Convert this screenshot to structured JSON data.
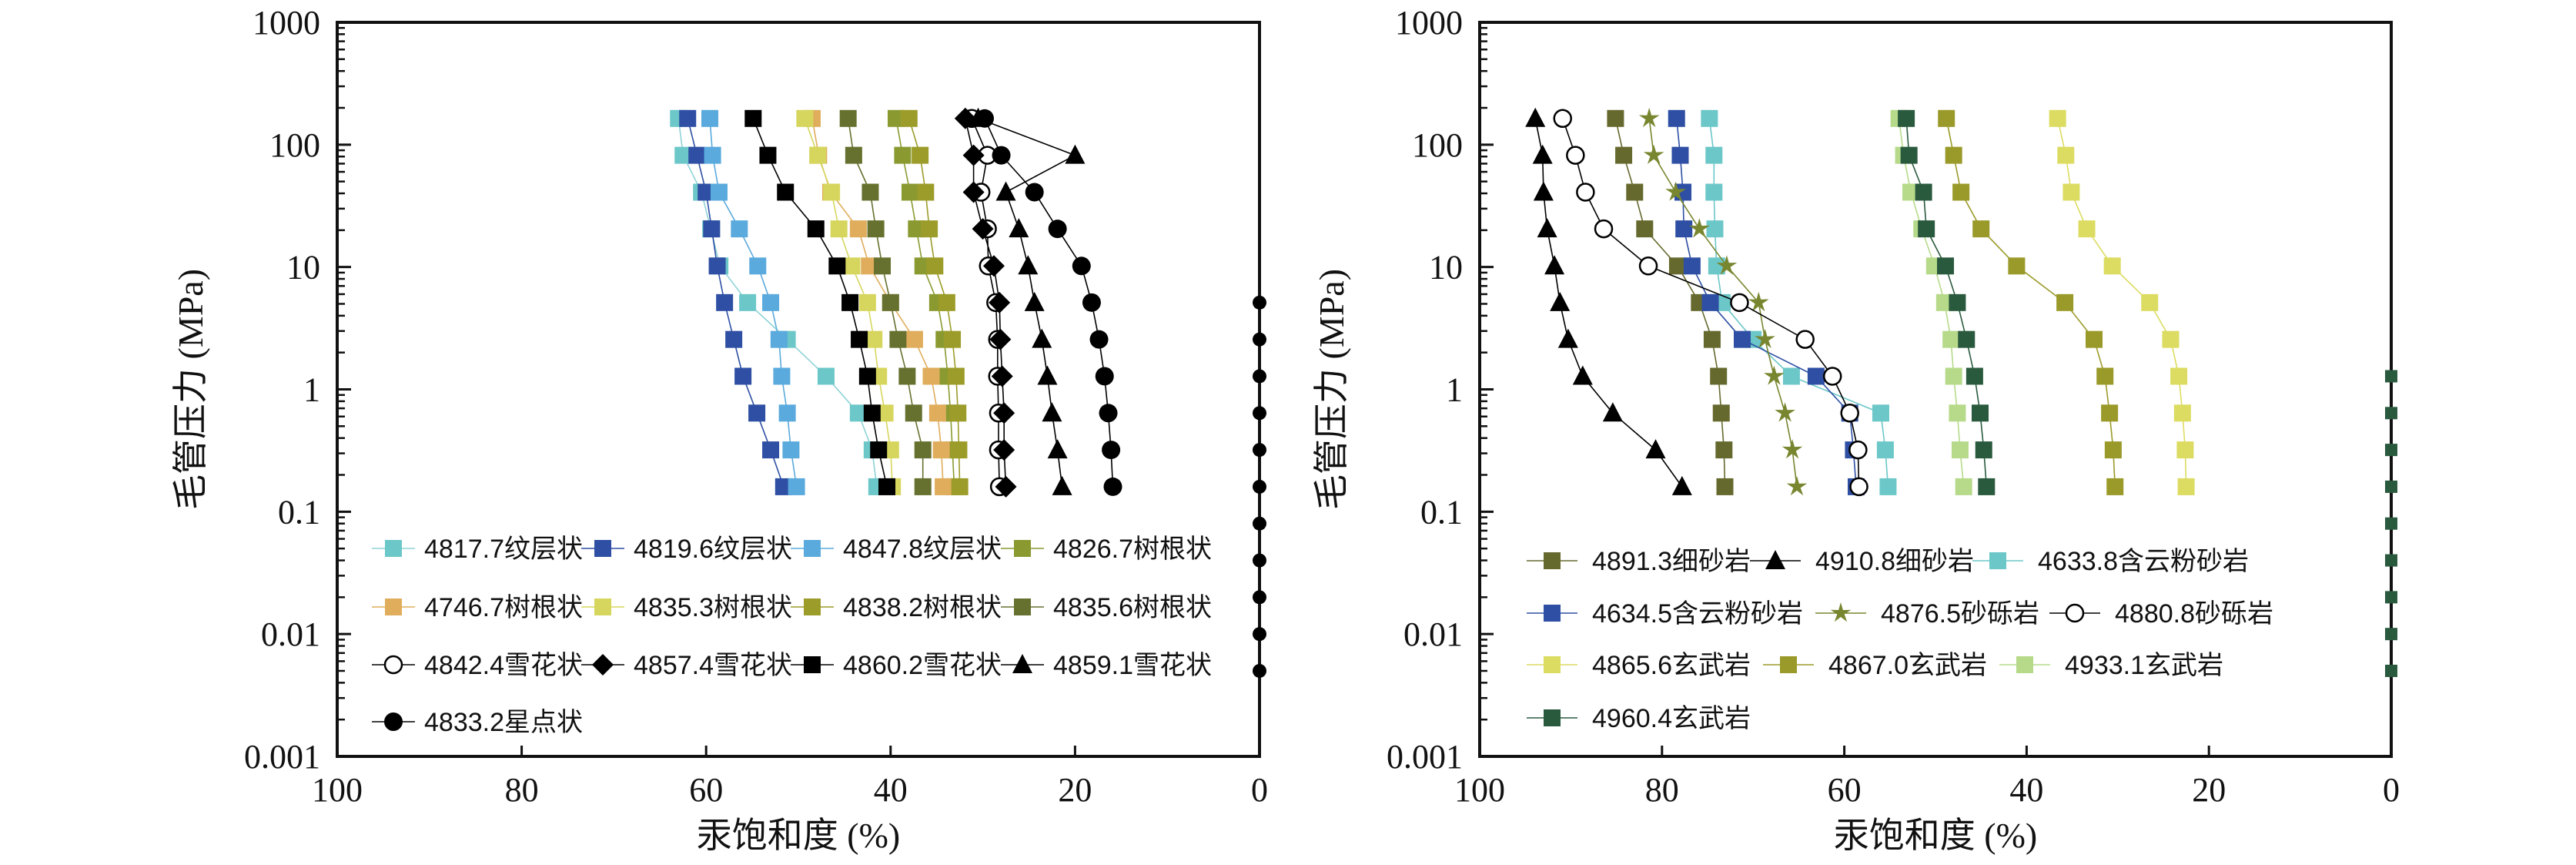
{
  "chart_data": [
    {
      "type": "line",
      "title": "",
      "xlabel": "汞饱和度 (%)",
      "ylabel": "毛管压力 (MPa)",
      "xlim": [
        100,
        0
      ],
      "ylim": [
        0.001,
        1000
      ],
      "yscale": "log",
      "xticks": [
        "100",
        "80",
        "60",
        "40",
        "20",
        "0"
      ],
      "yticks": [
        "1000",
        "100",
        "10",
        "1",
        "0.1",
        "0.01",
        "0.001"
      ],
      "legend_position": "bottom-left",
      "pressures": [
        163.8,
        81.9,
        40.9,
        20.5,
        10.2,
        5.12,
        2.56,
        1.28,
        0.64,
        0.32,
        0.16
      ],
      "series": [
        {
          "name": "4817.7纹层状",
          "marker": "square",
          "color": "#6cc7c8",
          "line": "#8fd3d6",
          "saturation": [
            63,
            62.5,
            60.5,
            59.5,
            58.5,
            55.5,
            51.2,
            47,
            43.5,
            42,
            41.5
          ]
        },
        {
          "name": "4819.6纹层状",
          "marker": "square",
          "color": "#2e4fa3",
          "line": "#2e4fa3",
          "saturation": [
            62,
            61,
            60,
            59.4,
            58.8,
            58,
            57,
            56,
            54.5,
            53,
            51.6
          ]
        },
        {
          "name": "4847.8纹层状",
          "marker": "square",
          "color": "#5aaadd",
          "line": "#5aaadd",
          "saturation": [
            59.6,
            59.3,
            58.6,
            56.4,
            54.4,
            53,
            52.1,
            51.8,
            51.2,
            50.8,
            50.2
          ]
        },
        {
          "name": "4826.7树根状",
          "marker": "square",
          "color": "#8a9a30",
          "line": "#8a9a30",
          "saturation": [
            39.4,
            38.7,
            37.9,
            37.2,
            36.5,
            34.9,
            34.2,
            33.8,
            33.5,
            33.3,
            33.1
          ]
        },
        {
          "name": "4746.7树根状",
          "marker": "square",
          "color": "#e0ad5c",
          "line": "#e0ad5c",
          "saturation": [
            48.5,
            47.8,
            46.5,
            43.5,
            42.3,
            40,
            37.4,
            35.6,
            34.9,
            34.5,
            34.3
          ]
        },
        {
          "name": "4835.3树根状",
          "marker": "square",
          "color": "#d6d65e",
          "line": "#d6d65e",
          "saturation": [
            49.3,
            47.9,
            46.4,
            45.6,
            44.2,
            42.5,
            41.8,
            41.3,
            40.6,
            40.0,
            39.8
          ]
        },
        {
          "name": "4838.2树根状",
          "marker": "square",
          "color": "#9c9c2a",
          "line": "#9c9c2a",
          "saturation": [
            38,
            36.8,
            36.2,
            35.8,
            35.2,
            33.9,
            33.3,
            32.9,
            32.7,
            32.6,
            32.5
          ]
        },
        {
          "name": "4835.6树根状",
          "marker": "square",
          "color": "#66712f",
          "line": "#66712f",
          "saturation": [
            44.6,
            44,
            42.2,
            41.6,
            40.9,
            40,
            39.2,
            38.2,
            37.5,
            36.5,
            36.5
          ]
        },
        {
          "name": "4842.4雪花状",
          "marker": "circle-open",
          "color": "#000000",
          "line": "#000000",
          "saturation": [
            31.2,
            29.5,
            30.2,
            29.5,
            29.4,
            28.6,
            28.4,
            28.4,
            28.3,
            28.3,
            28.2
          ]
        },
        {
          "name": "4857.4雪花状",
          "marker": "diamond",
          "color": "#000000",
          "line": "#000000",
          "saturation": [
            31.9,
            31,
            31,
            30,
            28.8,
            28.2,
            28.1,
            27.9,
            27.7,
            27.7,
            27.5
          ]
        },
        {
          "name": "4860.2雪花状",
          "marker": "square",
          "color": "#000000",
          "line": "#000000",
          "saturation": [
            54.9,
            53.3,
            51.4,
            48.1,
            45.8,
            44.4,
            43.4,
            42.5,
            42,
            41.3,
            40.4
          ]
        },
        {
          "name": "4859.1雪花状",
          "marker": "triangle",
          "color": "#000000",
          "line": "#000000",
          "saturation": [
            30.5,
            20,
            27.5,
            26.1,
            25.1,
            24.4,
            23.6,
            23,
            22.5,
            21.9,
            21.4
          ]
        },
        {
          "name": "4833.2星点状",
          "marker": "circle",
          "color": "#000000",
          "line": "#000000",
          "saturation": [
            29.8,
            28,
            24.4,
            21.9,
            19.3,
            18.2,
            17.4,
            16.8,
            16.4,
            16.1,
            15.9
          ]
        }
      ],
      "edge_markers": {
        "marker": "circle",
        "color": "#000000",
        "saturation": 0,
        "pressures": [
          5.12,
          2.56,
          1.28,
          0.64,
          0.32,
          0.16,
          0.08,
          0.04,
          0.02,
          0.01,
          0.005
        ]
      }
    },
    {
      "type": "line",
      "title": "",
      "xlabel": "汞饱和度 (%)",
      "ylabel": "毛管压力 (MPa)",
      "xlim": [
        100,
        0
      ],
      "ylim": [
        0.001,
        1000
      ],
      "yscale": "log",
      "xticks": [
        "100",
        "80",
        "60",
        "40",
        "20",
        "0"
      ],
      "yticks": [
        "1000",
        "100",
        "10",
        "1",
        "0.1",
        "0.01",
        "0.001"
      ],
      "legend_position": "bottom-left",
      "pressures": [
        163.8,
        81.9,
        40.9,
        20.5,
        10.2,
        5.12,
        2.56,
        1.28,
        0.64,
        0.32,
        0.16
      ],
      "series": [
        {
          "name": "4891.3细砂岩",
          "marker": "square",
          "color": "#66692e",
          "line": "#66692e",
          "saturation": [
            85.1,
            84.2,
            83,
            81.9,
            78.3,
            75.9,
            74.5,
            73.8,
            73.5,
            73.2,
            73.1
          ]
        },
        {
          "name": "4910.8细砂岩",
          "marker": "triangle",
          "color": "#000000",
          "line": "#000000",
          "saturation": [
            93.9,
            93.1,
            93,
            92.6,
            91.8,
            91.2,
            90.3,
            88.7,
            85.4,
            80.7,
            77.8
          ]
        },
        {
          "name": "4633.8含云粉砂岩",
          "marker": "square",
          "color": "#6cc7c8",
          "line": "#6cc7c8",
          "saturation": [
            74.8,
            74.3,
            74.3,
            74.2,
            74,
            73.4,
            70,
            65.8,
            56,
            55.5,
            55.2
          ]
        },
        {
          "name": "4634.5含云粉砂岩",
          "marker": "square",
          "color": "#2e4fa3",
          "line": "#2e4fa3",
          "saturation": [
            78.4,
            78,
            77.7,
            77.6,
            76.7,
            74.7,
            71.2,
            63.1,
            59.4,
            59,
            58.7
          ]
        },
        {
          "name": "4876.5砂砾岩",
          "marker": "star",
          "color": "#78862f",
          "line": "#78862f",
          "saturation": [
            81.4,
            80.9,
            78.5,
            75.9,
            72.9,
            69.4,
            68.7,
            67.7,
            66.5,
            65.7,
            65.2
          ]
        },
        {
          "name": "4880.8砂砾岩",
          "marker": "circle-open",
          "color": "#000000",
          "line": "#000000",
          "saturation": [
            90.9,
            89.5,
            88.4,
            86.4,
            81.5,
            71.5,
            64.3,
            61.3,
            59.4,
            58.5,
            58.4
          ]
        },
        {
          "name": "4865.6玄武岩",
          "marker": "square",
          "color": "#dcdc62",
          "line": "#dcdc62",
          "saturation": [
            36.6,
            35.7,
            35.1,
            33.4,
            30.6,
            26.5,
            24.2,
            23.3,
            22.9,
            22.6,
            22.5
          ]
        },
        {
          "name": "4867.0玄武岩",
          "marker": "square",
          "color": "#9a9a2a",
          "line": "#9a9a2a",
          "saturation": [
            48.8,
            48,
            47.2,
            45,
            41.1,
            35.8,
            32.6,
            31.4,
            30.9,
            30.5,
            30.3
          ]
        },
        {
          "name": "4933.1玄武岩",
          "marker": "square",
          "color": "#b6da8a",
          "line": "#b6da8a",
          "saturation": [
            54,
            53.5,
            52.7,
            51.5,
            50.1,
            49,
            48.3,
            48,
            47.6,
            47.3,
            46.9
          ]
        },
        {
          "name": "4960.4玄武岩",
          "marker": "square",
          "color": "#2a5a3e",
          "line": "#2a5a3e",
          "saturation": [
            53.2,
            52.9,
            51.3,
            51,
            48.9,
            47.6,
            46.6,
            45.7,
            45.1,
            44.7,
            44.4
          ]
        }
      ],
      "edge_markers": {
        "marker": "square",
        "color": "#2a5a3e",
        "saturation": 0,
        "pressures": [
          1.28,
          0.64,
          0.32,
          0.16,
          0.08,
          0.04,
          0.02,
          0.01,
          0.005
        ]
      }
    }
  ]
}
